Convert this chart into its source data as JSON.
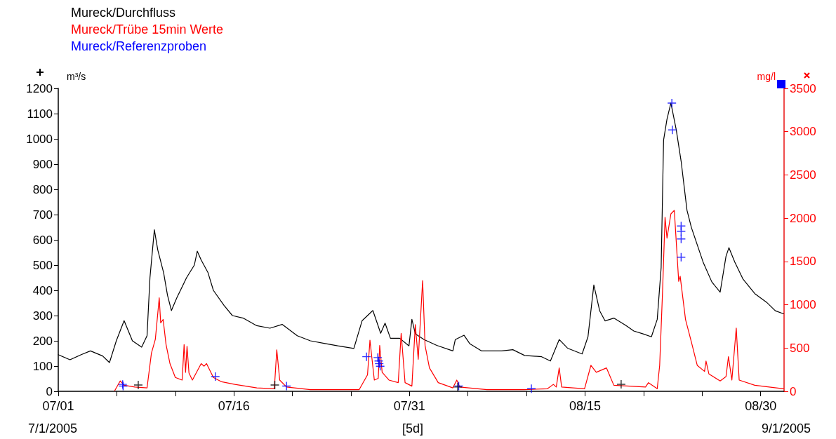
{
  "chart_data": {
    "type": "line",
    "xlim": [
      "2005-07-01",
      "2005-09-01"
    ],
    "xticks": [
      {
        "value": "2005-07-01",
        "label": "07/01"
      },
      {
        "value": "2005-07-06",
        "label": null
      },
      {
        "value": "2005-07-11",
        "label": null
      },
      {
        "value": "2005-07-16",
        "label": "07/16"
      },
      {
        "value": "2005-07-21",
        "label": null
      },
      {
        "value": "2005-07-26",
        "label": null
      },
      {
        "value": "2005-07-31",
        "label": "07/31"
      },
      {
        "value": "2005-08-05",
        "label": null
      },
      {
        "value": "2005-08-10",
        "label": null
      },
      {
        "value": "2005-08-15",
        "label": "08/15"
      },
      {
        "value": "2005-08-20",
        "label": null
      },
      {
        "value": "2005-08-25",
        "label": null
      },
      {
        "value": "2005-08-30",
        "label": "08/30"
      }
    ],
    "ylabel": "m³/s",
    "ylim": [
      0,
      1200
    ],
    "yticks": [
      0,
      100,
      200,
      300,
      400,
      500,
      600,
      700,
      800,
      900,
      1000,
      1100,
      1200
    ],
    "y2label": "mg/l",
    "y2lim": [
      0,
      3500
    ],
    "y2ticks": [
      0,
      500,
      1000,
      1500,
      2000,
      2500,
      3000,
      3500
    ],
    "legend": "top left",
    "marker": "none",
    "line_style": "solid",
    "annotations": [
      "7/1/2005",
      "[5d]",
      "9/1/2005"
    ],
    "series": [
      {
        "name": "Mureck/Durchfluss",
        "color": "#000000",
        "x": [
          "2005-07-01T00:00",
          "2005-07-02T00:00",
          "2005-07-02T23:00",
          "2005-07-03T18:00",
          "2005-07-04T19:00",
          "2005-07-05T09:00",
          "2005-07-05T23:00",
          "2005-07-06T15:00",
          "2005-07-07T08:00",
          "2005-07-08T03:00",
          "2005-07-08T14:00",
          "2005-07-08T20:00",
          "2005-07-09T05:00",
          "2005-07-09T12:00",
          "2005-07-10T00:00",
          "2005-07-10T08:00",
          "2005-07-10T16:00",
          "2005-07-11T03:00",
          "2005-07-11T23:00",
          "2005-07-12T15:00",
          "2005-07-12T21:00",
          "2005-07-13T05:00",
          "2005-07-13T19:00",
          "2005-07-14T06:00",
          "2005-07-15T04:00",
          "2005-07-15T21:00",
          "2005-07-16T19:00",
          "2005-07-17T23:00",
          "2005-07-19T02:00",
          "2005-07-20T03:00",
          "2005-07-21T10:00",
          "2005-07-22T13:00",
          "2005-07-23T17:00",
          "2005-07-24T21:00",
          "2005-07-26T06:00",
          "2005-07-26T23:00",
          "2005-07-27T21:00",
          "2005-07-28T13:00",
          "2005-07-28T22:00",
          "2005-07-29T09:00",
          "2005-07-30T04:00",
          "2005-07-30T23:00",
          "2005-07-31T05:00",
          "2005-07-31T12:00",
          "2005-08-01T06:00",
          "2005-08-02T08:00",
          "2005-08-03T17:00",
          "2005-08-03T22:00",
          "2005-08-04T16:00",
          "2005-08-05T04:00",
          "2005-08-06T04:00",
          "2005-08-07T21:00",
          "2005-08-08T20:00",
          "2005-08-09T20:00",
          "2005-08-11T07:00",
          "2005-08-12T01:00",
          "2005-08-12T19:00",
          "2005-08-13T12:00",
          "2005-08-14T18:00",
          "2005-08-15T06:00",
          "2005-08-15T18:00",
          "2005-08-16T06:00",
          "2005-08-16T17:00",
          "2005-08-17T11:00",
          "2005-08-18T11:00",
          "2005-08-19T04:00",
          "2005-08-19T22:00",
          "2005-08-20T16:00",
          "2005-08-21T04:00",
          "2005-08-21T12:00",
          "2005-08-21T17:00",
          "2005-08-22T00:00",
          "2005-08-22T08:00",
          "2005-08-22T19:00",
          "2005-08-23T05:00",
          "2005-08-23T17:00",
          "2005-08-24T02:00",
          "2005-08-25T02:00",
          "2005-08-25T20:00",
          "2005-08-26T13:00",
          "2005-08-27T01:00",
          "2005-08-27T07:00",
          "2005-08-27T19:00",
          "2005-08-28T12:00",
          "2005-08-29T12:00",
          "2005-08-30T12:00",
          "2005-08-31T06:00",
          "2005-08-31T23:00"
        ],
        "values": [
          145,
          125,
          145,
          160,
          140,
          114,
          200,
          280,
          200,
          175,
          220,
          450,
          640,
          560,
          470,
          380,
          320,
          370,
          450,
          500,
          555,
          520,
          470,
          400,
          340,
          300,
          290,
          260,
          250,
          265,
          220,
          200,
          190,
          180,
          170,
          280,
          320,
          230,
          270,
          210,
          210,
          180,
          285,
          228,
          205,
          182,
          160,
          205,
          222,
          188,
          160,
          160,
          165,
          142,
          137,
          120,
          205,
          171,
          148,
          216,
          421,
          319,
          279,
          290,
          262,
          239,
          228,
          216,
          285,
          490,
          995,
          1078,
          1142,
          1036,
          911,
          717,
          649,
          512,
          433,
          393,
          535,
          569,
          512,
          444,
          387,
          353,
          319,
          307
        ]
      },
      {
        "name": "Mureck/Trübe 15min Werte",
        "color": "#ff0000",
        "axis": "y2",
        "x": [
          "2005-07-05T20:00",
          "2005-07-06T07:00",
          "2005-07-06T15:00",
          "2005-07-07T13:00",
          "2005-07-08T14:00",
          "2005-07-08T23:00",
          "2005-07-09T07:00",
          "2005-07-09T15:00",
          "2005-07-09T18:00",
          "2005-07-09T23:00",
          "2005-07-10T05:00",
          "2005-07-10T13:00",
          "2005-07-11T00:00",
          "2005-07-11T14:00",
          "2005-07-11T18:00",
          "2005-07-11T21:00",
          "2005-07-12T00:00",
          "2005-07-12T04:00",
          "2005-07-12T11:00",
          "2005-07-13T05:00",
          "2005-07-13T11:00",
          "2005-07-13T16:00",
          "2005-07-14T06:00",
          "2005-07-14T23:00",
          "2005-07-16T02:00",
          "2005-07-17T23:00",
          "2005-07-19T11:00",
          "2005-07-19T16:00",
          "2005-07-19T22:00",
          "2005-07-20T12:00",
          "2005-07-22T13:00",
          "2005-07-24T21:00",
          "2005-07-26T17:00",
          "2005-07-27T10:00",
          "2005-07-27T15:00",
          "2005-07-28T00:00",
          "2005-07-28T08:00",
          "2005-07-28T11:00",
          "2005-07-28T16:00",
          "2005-07-29T06:00",
          "2005-07-30T01:00",
          "2005-07-30T07:00",
          "2005-07-30T15:00",
          "2005-07-31T05:00",
          "2005-07-31T12:00",
          "2005-07-31T18:00",
          "2005-08-01T03:00",
          "2005-08-01T08:00",
          "2005-08-01T17:00",
          "2005-08-02T11:00",
          "2005-08-03T17:00",
          "2005-08-04T01:00",
          "2005-08-04T07:00",
          "2005-08-06T15:00",
          "2005-08-09T20:00",
          "2005-08-11T19:00",
          "2005-08-12T07:00",
          "2005-08-12T13:00",
          "2005-08-12T19:00",
          "2005-08-13T00:00",
          "2005-08-14T23:00",
          "2005-08-15T12:00",
          "2005-08-15T23:00",
          "2005-08-16T20:00",
          "2005-08-17T11:00",
          "2005-08-20T04:00",
          "2005-08-20T10:00",
          "2005-08-21T04:00",
          "2005-08-21T09:00",
          "2005-08-21T15:00",
          "2005-08-21T20:00",
          "2005-08-22T00:00",
          "2005-08-22T08:00",
          "2005-08-22T15:00",
          "2005-08-23T00:00",
          "2005-08-23T03:00",
          "2005-08-23T14:00",
          "2005-08-24T02:00",
          "2005-08-24T14:00",
          "2005-08-25T05:00",
          "2005-08-25T08:00",
          "2005-08-25T14:00",
          "2005-08-26T13:00",
          "2005-08-27T01:00",
          "2005-08-27T06:00",
          "2005-08-27T13:00",
          "2005-08-27T22:00",
          "2005-08-28T04:00",
          "2005-08-29T12:00",
          "2005-08-31T23:00"
        ],
        "values": [
          10,
          120,
          70,
          50,
          40,
          440,
          600,
          1080,
          790,
          830,
          540,
          320,
          160,
          130,
          540,
          220,
          520,
          210,
          130,
          320,
          290,
          320,
          160,
          110,
          80,
          40,
          30,
          480,
          130,
          50,
          20,
          20,
          20,
          190,
          590,
          130,
          150,
          530,
          220,
          130,
          100,
          670,
          100,
          60,
          770,
          370,
          1280,
          530,
          270,
          100,
          40,
          130,
          50,
          20,
          20,
          30,
          80,
          50,
          270,
          50,
          30,
          300,
          220,
          270,
          70,
          50,
          100,
          30,
          300,
          1170,
          2010,
          1770,
          2050,
          2090,
          1270,
          1330,
          830,
          570,
          300,
          230,
          350,
          200,
          120,
          170,
          400,
          130,
          730,
          130,
          70,
          30
        ]
      },
      {
        "name": "Mureck/Referenzproben",
        "color": "#0000ff",
        "type": "scatter",
        "axis": "y2",
        "marker": "cross",
        "x": [
          "2005-07-06T12:00",
          "2005-07-06T13:00",
          "2005-07-14T10:00",
          "2005-07-20T12:00",
          "2005-07-27T08:00",
          "2005-07-28T07:00",
          "2005-07-28T09:00",
          "2005-07-28T10:00",
          "2005-07-28T12:00",
          "2005-08-04T05:00",
          "2005-08-10T10:00",
          "2005-08-22T10:00",
          "2005-08-22T11:00",
          "2005-08-23T05:00",
          "2005-08-23T05:00",
          "2005-08-23T05:00",
          "2005-08-23T05:00"
        ],
        "values": [
          80,
          60,
          170,
          60,
          400,
          390,
          350,
          320,
          290,
          60,
          30,
          3330,
          3020,
          1910,
          1850,
          1760,
          1550
        ]
      },
      {
        "color": "#000000",
        "type": "scatter",
        "marker": "cross",
        "x": [
          "2005-07-07T20:00",
          "2005-07-19T12:00",
          "2005-08-04T03:00",
          "2005-08-18T02:00"
        ],
        "values": [
          25,
          25,
          17,
          28
        ]
      }
    ]
  }
}
